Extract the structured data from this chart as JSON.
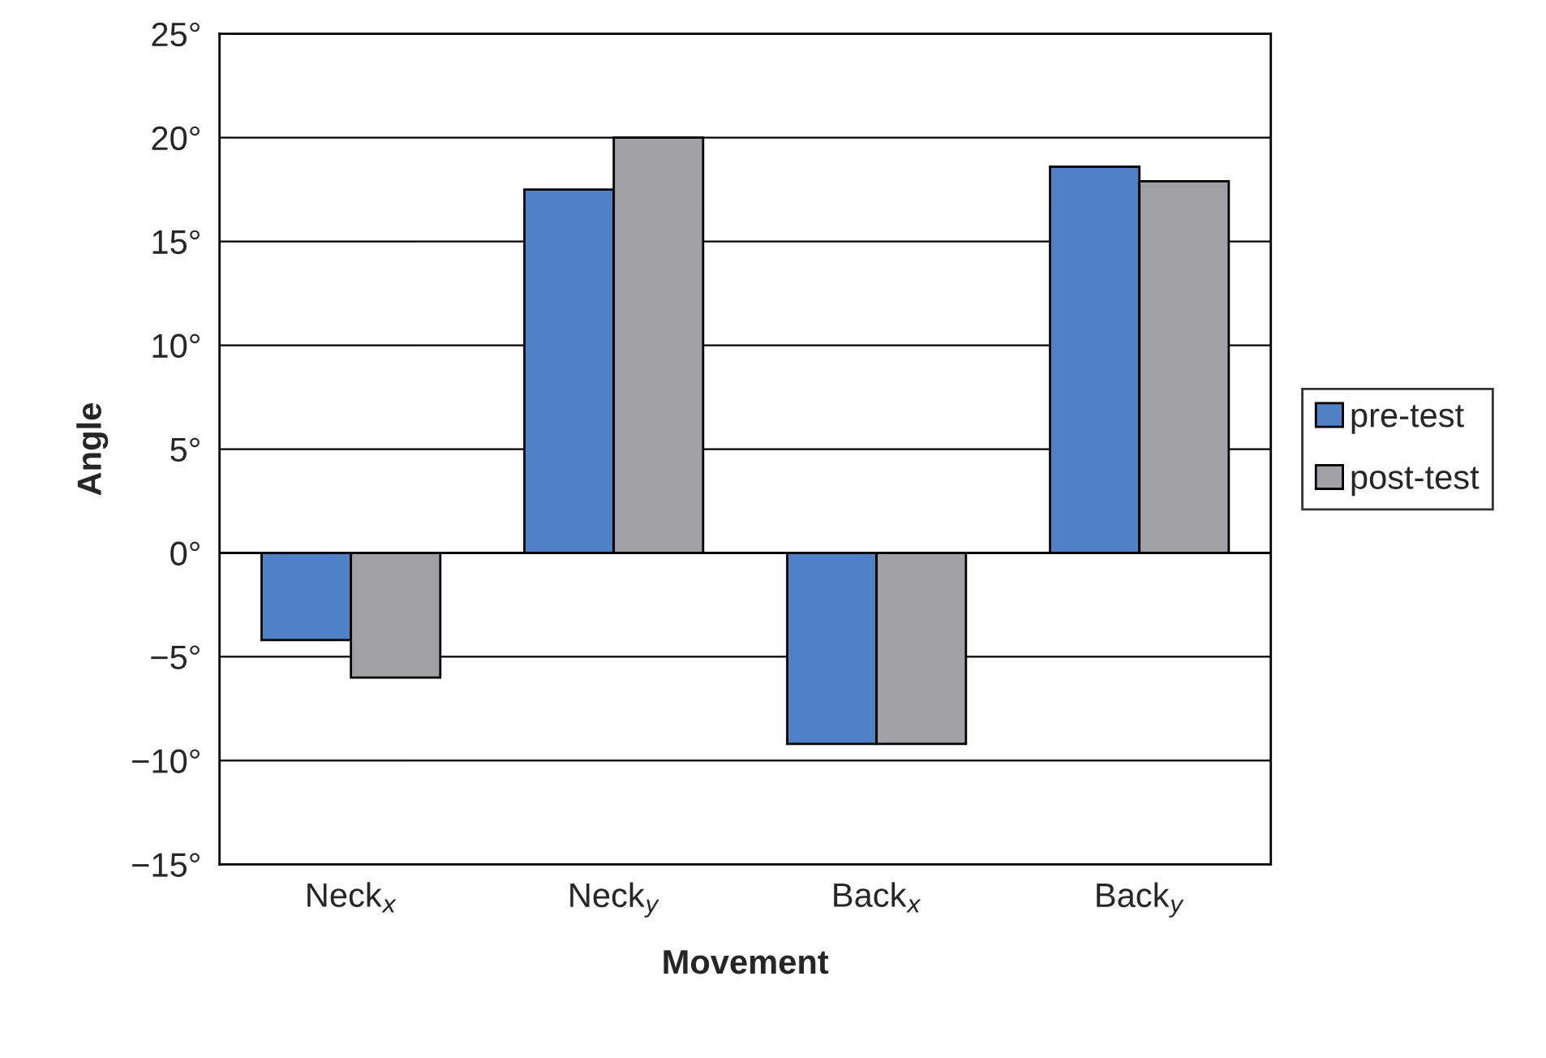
{
  "chart_data": {
    "type": "bar",
    "xlabel": "Movement",
    "ylabel": "Angle",
    "categories": [
      "Neck$_{x}$",
      "Neck$_{y}$",
      "Back$_{x}$",
      "Back$_{y}$"
    ],
    "series": [
      {
        "name": "pre-test",
        "color": "#4f81c4",
        "values": [
          -4.2,
          17.5,
          -9.2,
          18.6
        ]
      },
      {
        "name": "post-test",
        "color": "#a0a0a5",
        "values": [
          -6.0,
          20.0,
          -9.2,
          17.9
        ]
      }
    ],
    "ylim": [
      -15,
      25
    ],
    "yticks": [
      {
        "value": -15,
        "label": "−15°"
      },
      {
        "value": -10,
        "label": "−10°"
      },
      {
        "value": -5,
        "label": "−5°"
      },
      {
        "value": 0,
        "label": "0°"
      },
      {
        "value": 5,
        "label": "5°"
      },
      {
        "value": 10,
        "label": "10°"
      },
      {
        "value": 15,
        "label": "15°"
      },
      {
        "value": 20,
        "label": "20°"
      },
      {
        "value": 25,
        "label": "25°"
      }
    ],
    "grid": "y",
    "legend": "right"
  }
}
